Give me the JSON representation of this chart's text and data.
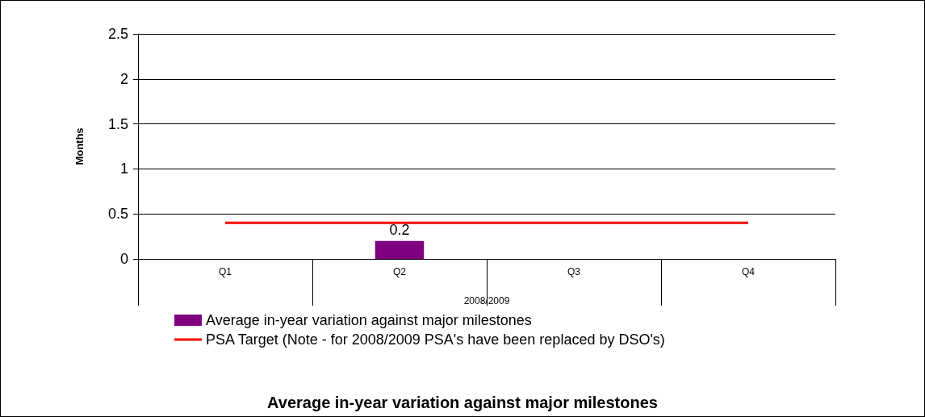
{
  "chart_data": {
    "type": "bar",
    "title": "Average in-year variation against major milestones",
    "xlabel": "2008/2009",
    "ylabel": "Months",
    "categories": [
      "Q1",
      "Q2",
      "Q3",
      "Q4"
    ],
    "series": [
      {
        "name": "Average in-year variation against major milestones",
        "color": "#800080",
        "values": [
          null,
          0.2,
          null,
          null
        ],
        "value_labels": [
          null,
          "0.2",
          null,
          null
        ]
      },
      {
        "name": "PSA Target (Note - for 2008/2009 PSA's have been replaced by DSO's)",
        "type": "line",
        "color": "#ff0000",
        "values": [
          0.4,
          0.4,
          0.4,
          0.4
        ],
        "marker": "none"
      }
    ],
    "ylim": [
      0,
      2.5
    ],
    "yticks": [
      0,
      0.5,
      1,
      1.5,
      2,
      2.5
    ],
    "grid": "y",
    "legend": "bottom"
  }
}
